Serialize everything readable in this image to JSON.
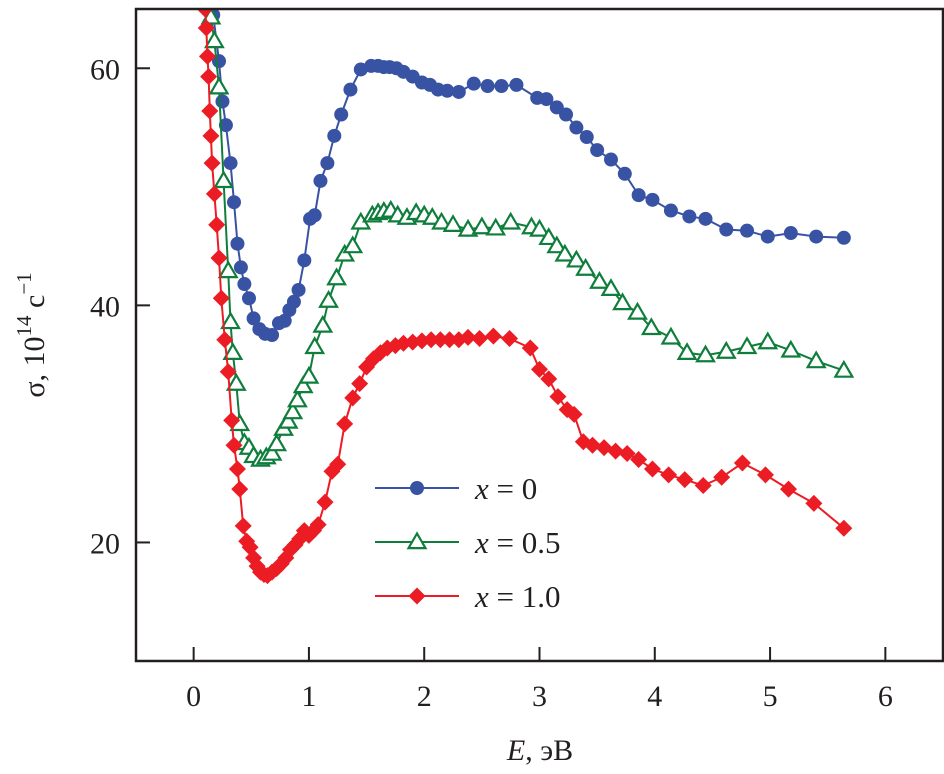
{
  "chart_data": {
    "type": "line",
    "title": "",
    "xlabel": {
      "var": "E",
      "unit": ", эВ"
    },
    "ylabel": {
      "prefix": "σ, 10",
      "exp": "14",
      "unit": " с",
      "unit_exp": "−1"
    },
    "xlim": [
      -0.5,
      6.5
    ],
    "ylim": [
      10,
      65
    ],
    "xticks": [
      0,
      1,
      2,
      3,
      4,
      5,
      6
    ],
    "xtick_labels": [
      "0",
      "1",
      "2",
      "3",
      "4",
      "5",
      "6"
    ],
    "yticks": [
      20,
      40,
      60
    ],
    "ytick_labels": [
      "20",
      "40",
      "60"
    ],
    "grid": false,
    "legend_position": "bottom-center",
    "series": [
      {
        "name": "x = 0",
        "legend_var": "x",
        "legend_value": " = 0",
        "color": "#3953a4",
        "marker": "circle-filled",
        "x": [
          0.17,
          0.22,
          0.25,
          0.28,
          0.32,
          0.35,
          0.38,
          0.41,
          0.44,
          0.48,
          0.52,
          0.57,
          0.62,
          0.68,
          0.74,
          0.79,
          0.83,
          0.87,
          0.91,
          0.96,
          1.01,
          1.05,
          1.1,
          1.16,
          1.22,
          1.28,
          1.36,
          1.45,
          1.54,
          1.6,
          1.65,
          1.7,
          1.76,
          1.82,
          1.9,
          1.98,
          2.05,
          2.12,
          2.2,
          2.3,
          2.43,
          2.55,
          2.67,
          2.8,
          2.98,
          3.06,
          3.15,
          3.23,
          3.32,
          3.41,
          3.5,
          3.62,
          3.74,
          3.86,
          3.98,
          4.14,
          4.3,
          4.44,
          4.62,
          4.8,
          4.98,
          5.18,
          5.4,
          5.64
        ],
        "y": [
          64.5,
          60.6,
          57.2,
          55.2,
          52.0,
          48.7,
          45.2,
          43.2,
          41.8,
          40.6,
          38.9,
          38.0,
          37.6,
          37.5,
          38.5,
          38.7,
          39.6,
          40.3,
          41.3,
          43.8,
          47.3,
          47.6,
          50.5,
          52.0,
          54.3,
          56.1,
          58.2,
          59.9,
          60.2,
          60.2,
          60.1,
          60.1,
          60.0,
          59.7,
          59.3,
          58.8,
          58.6,
          58.2,
          58.1,
          58.0,
          58.7,
          58.5,
          58.5,
          58.6,
          57.5,
          57.4,
          56.7,
          56.1,
          55.0,
          54.2,
          53.1,
          52.3,
          51.1,
          49.3,
          48.9,
          48.0,
          47.5,
          47.3,
          46.4,
          46.3,
          45.8,
          46.1,
          45.8,
          45.7
        ]
      },
      {
        "name": "x = 0.5",
        "legend_var": "x",
        "legend_value": " = 0.5",
        "color": "#0f7e3c",
        "marker": "triangle-open",
        "x": [
          0.15,
          0.18,
          0.22,
          0.26,
          0.3,
          0.32,
          0.34,
          0.37,
          0.4,
          0.44,
          0.48,
          0.52,
          0.58,
          0.63,
          0.68,
          0.72,
          0.78,
          0.82,
          0.86,
          0.9,
          0.95,
          1.0,
          1.05,
          1.12,
          1.17,
          1.24,
          1.31,
          1.38,
          1.45,
          1.55,
          1.6,
          1.65,
          1.71,
          1.77,
          1.85,
          1.93,
          2.0,
          2.07,
          2.15,
          2.25,
          2.38,
          2.5,
          2.62,
          2.75,
          2.93,
          3.0,
          3.08,
          3.15,
          3.22,
          3.32,
          3.4,
          3.52,
          3.62,
          3.72,
          3.85,
          3.97,
          4.14,
          4.28,
          4.44,
          4.62,
          4.8,
          4.98,
          5.18,
          5.4,
          5.64
        ],
        "y": [
          64.3,
          62.3,
          58.4,
          50.5,
          42.9,
          38.6,
          36.0,
          33.4,
          30.0,
          28.4,
          28.0,
          27.3,
          27.0,
          27.2,
          27.5,
          28.3,
          29.6,
          30.2,
          31.0,
          32.0,
          33.2,
          34.0,
          36.5,
          38.3,
          40.4,
          42.3,
          44.3,
          45.0,
          47.0,
          47.6,
          47.8,
          47.9,
          48.0,
          47.6,
          47.4,
          47.8,
          47.6,
          47.4,
          47.0,
          46.8,
          46.4,
          46.6,
          46.5,
          47.0,
          46.6,
          46.4,
          45.7,
          45.0,
          44.3,
          43.8,
          43.1,
          42.0,
          41.4,
          40.2,
          39.4,
          38.1,
          37.3,
          36.0,
          35.8,
          36.1,
          36.5,
          36.9,
          36.2,
          35.3,
          34.5
        ]
      },
      {
        "name": "x = 1.0",
        "legend_var": "x",
        "legend_value": " = 1.0",
        "color": "#ec1c24",
        "marker": "diamond-filled",
        "x": [
          0.1,
          0.11,
          0.12,
          0.13,
          0.14,
          0.15,
          0.16,
          0.18,
          0.2,
          0.22,
          0.24,
          0.27,
          0.3,
          0.33,
          0.35,
          0.38,
          0.4,
          0.43,
          0.46,
          0.49,
          0.52,
          0.55,
          0.58,
          0.61,
          0.64,
          0.68,
          0.72,
          0.76,
          0.8,
          0.84,
          0.88,
          0.92,
          0.96,
          1.0,
          1.04,
          1.08,
          1.14,
          1.2,
          1.25,
          1.31,
          1.38,
          1.44,
          1.5,
          1.56,
          1.62,
          1.68,
          1.75,
          1.82,
          1.9,
          1.98,
          2.06,
          2.14,
          2.22,
          2.3,
          2.38,
          2.48,
          2.6,
          2.74,
          2.92,
          3.0,
          3.08,
          3.16,
          3.24,
          3.3,
          3.38,
          3.46,
          3.56,
          3.66,
          3.76,
          3.86,
          3.98,
          4.12,
          4.26,
          4.42,
          4.58,
          4.76,
          4.96,
          5.16,
          5.38,
          5.64
        ],
        "y": [
          65.0,
          63.4,
          61.0,
          59.3,
          56.4,
          54.3,
          52.0,
          49.4,
          46.8,
          44.0,
          40.6,
          37.1,
          34.4,
          30.3,
          28.2,
          26.2,
          24.5,
          21.4,
          20.1,
          19.6,
          18.7,
          18.0,
          17.5,
          17.3,
          17.2,
          17.5,
          17.8,
          18.2,
          18.7,
          19.4,
          19.8,
          20.3,
          21.0,
          20.6,
          21.0,
          21.5,
          23.4,
          26.0,
          26.6,
          30.0,
          32.2,
          33.4,
          34.8,
          35.5,
          36.0,
          36.4,
          36.6,
          36.8,
          36.9,
          37.0,
          37.1,
          37.1,
          37.1,
          37.1,
          37.3,
          37.2,
          37.4,
          37.2,
          36.4,
          34.6,
          33.8,
          32.3,
          31.2,
          30.8,
          28.5,
          28.2,
          28.0,
          27.7,
          27.5,
          27.0,
          26.2,
          25.7,
          25.3,
          24.8,
          25.5,
          26.7,
          25.7,
          24.5,
          23.3,
          21.2
        ]
      }
    ]
  }
}
